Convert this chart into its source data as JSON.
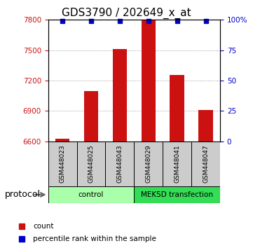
{
  "title": "GDS3790 / 202649_x_at",
  "samples": [
    "GSM448023",
    "GSM448025",
    "GSM448043",
    "GSM448029",
    "GSM448041",
    "GSM448047"
  ],
  "count_values": [
    6625,
    7100,
    7510,
    7800,
    7255,
    6910
  ],
  "percentile_values": [
    99,
    99,
    99,
    99,
    99,
    99
  ],
  "ylim_left": [
    6600,
    7800
  ],
  "ylim_right": [
    0,
    100
  ],
  "yticks_left": [
    6600,
    6900,
    7200,
    7500,
    7800
  ],
  "yticks_right": [
    0,
    25,
    50,
    75,
    100
  ],
  "groups": [
    {
      "label": "control",
      "start": 0,
      "end": 3,
      "color": "#aaffaa"
    },
    {
      "label": "MEK5D transfection",
      "start": 3,
      "end": 6,
      "color": "#33dd55"
    }
  ],
  "bar_color": "#cc1111",
  "percentile_color": "#0000cc",
  "bar_width": 0.5,
  "protocol_label": "protocol",
  "legend_items": [
    {
      "label": "count",
      "color": "#cc1111"
    },
    {
      "label": "percentile rank within the sample",
      "color": "#0000cc"
    }
  ],
  "background_color": "#ffffff",
  "sample_box_color": "#cccccc",
  "grid_color": "#888888",
  "left_axis_color": "#cc1111",
  "right_axis_color": "#0000cc"
}
